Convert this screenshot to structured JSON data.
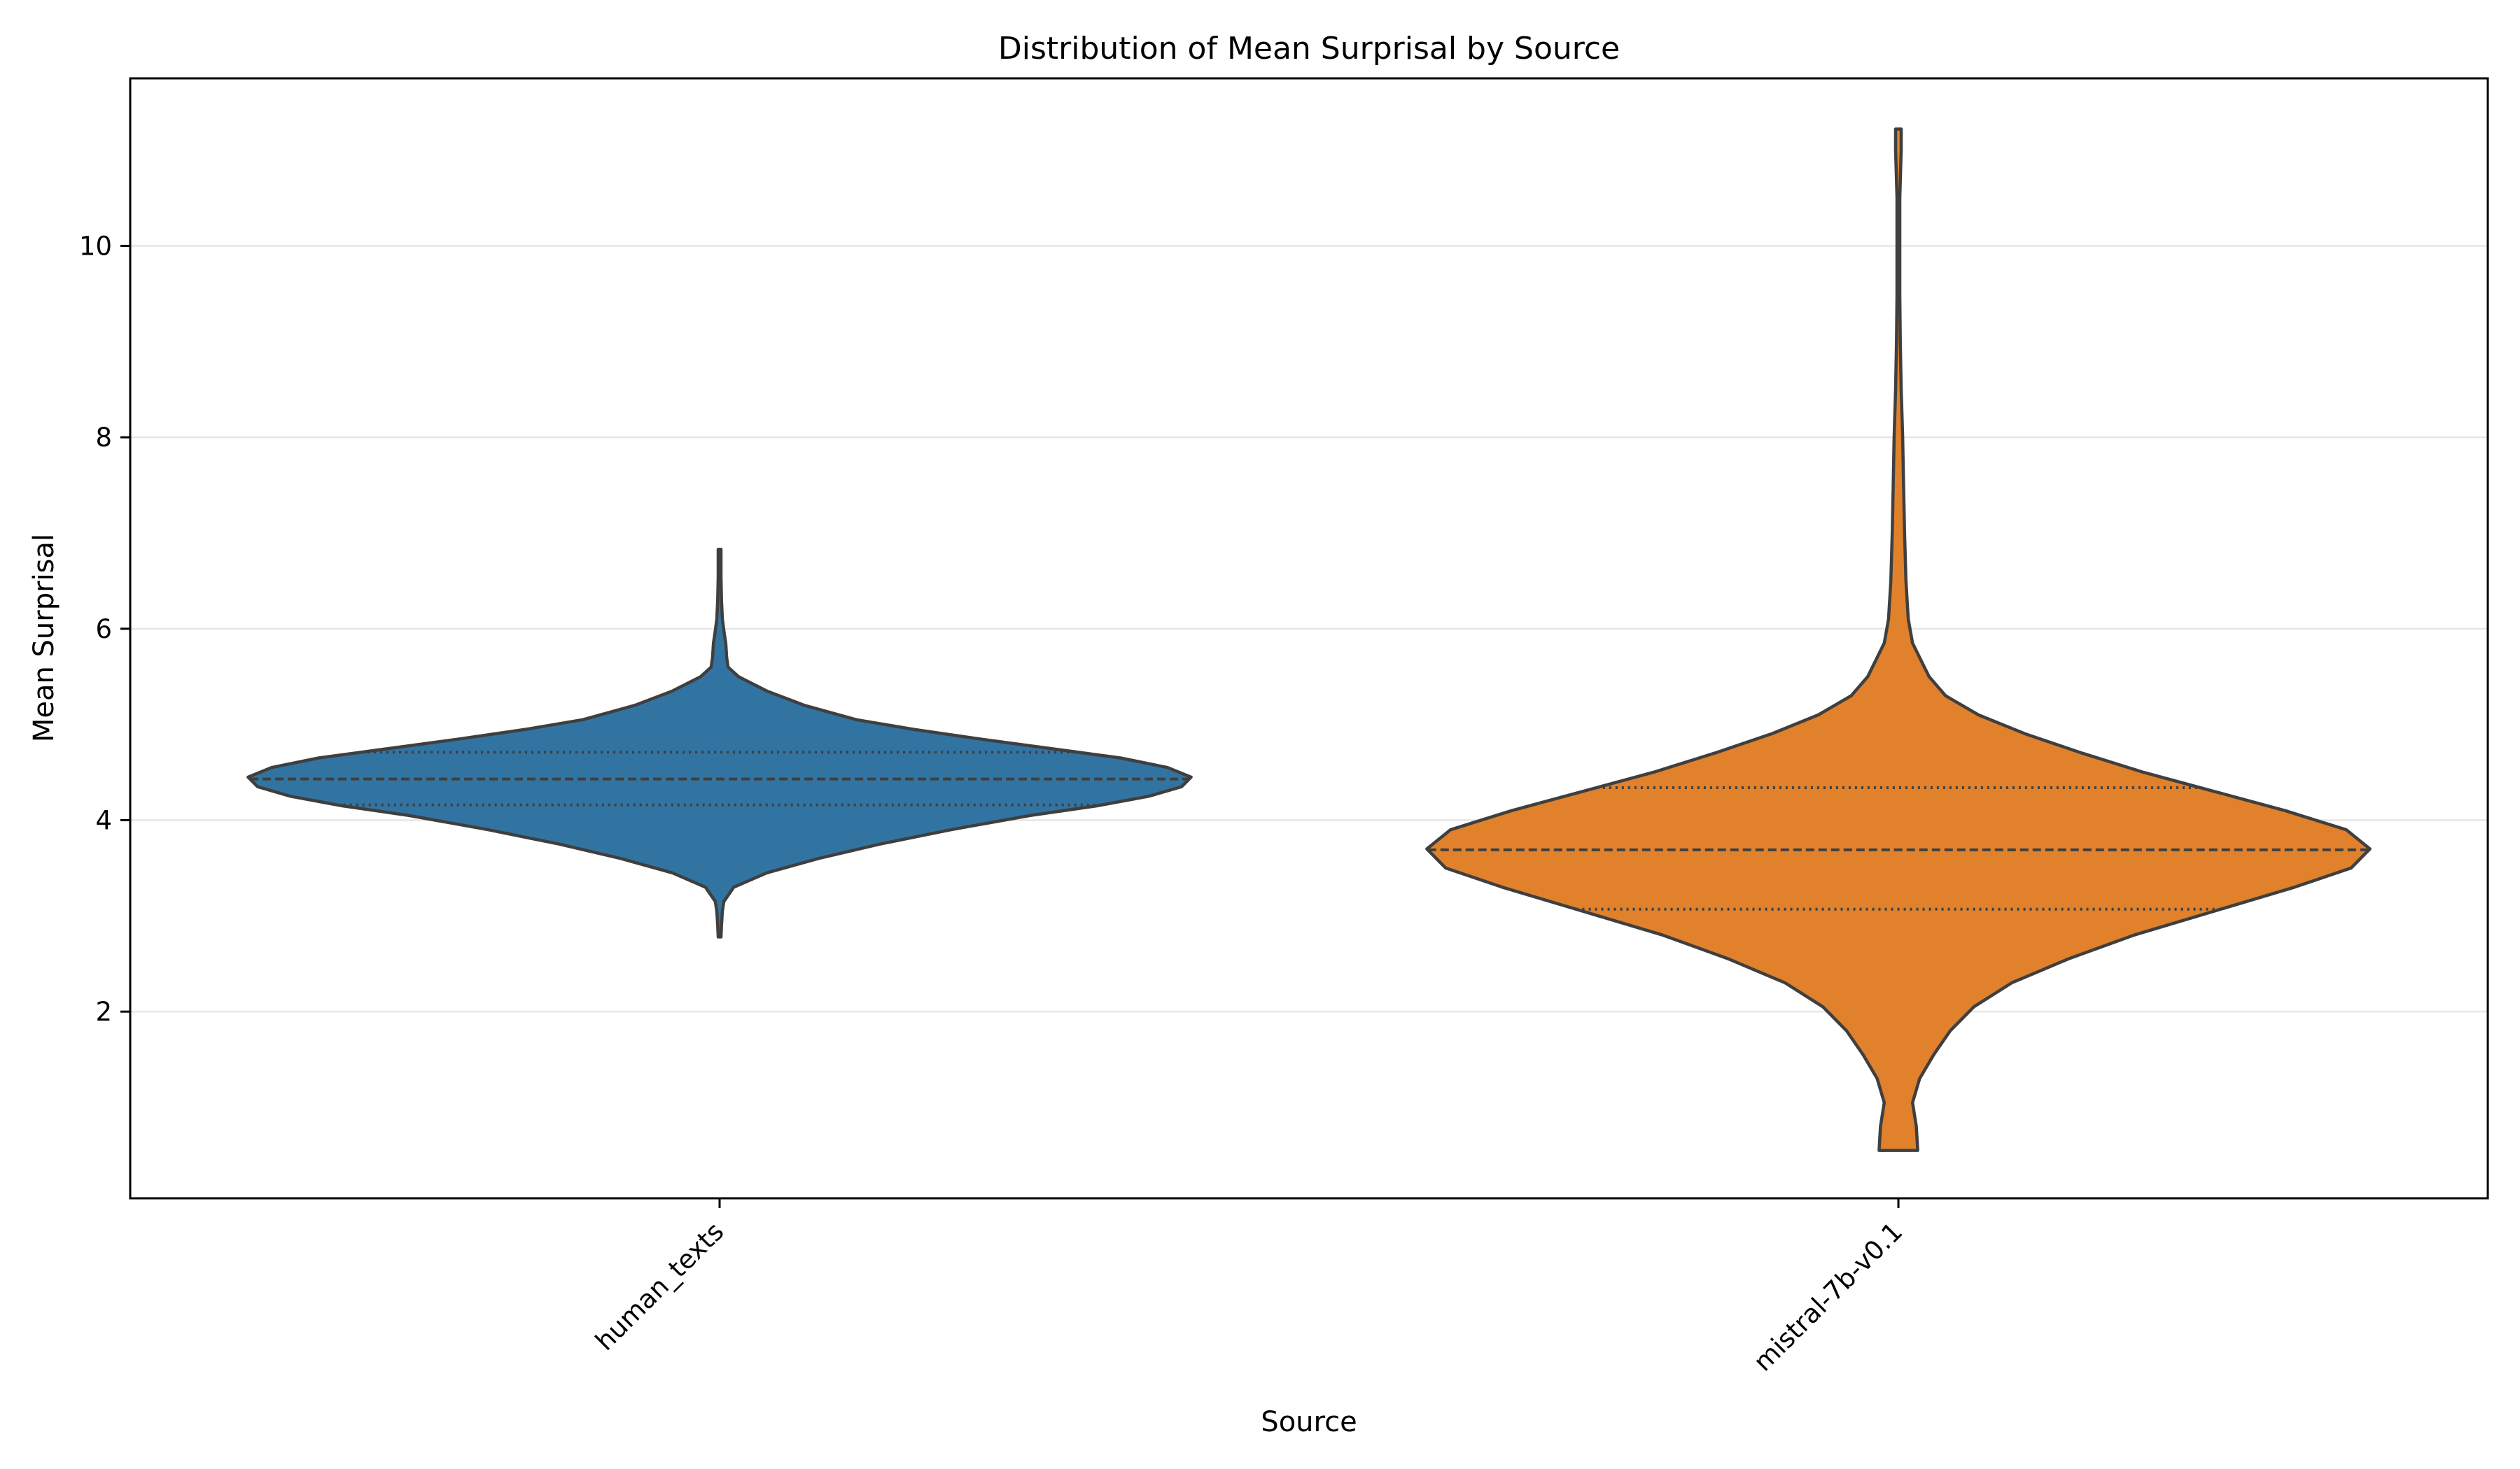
{
  "chart_data": {
    "type": "violin",
    "title": "Distribution of Mean Surprisal by Source",
    "xlabel": "Source",
    "ylabel": "Mean Surprisal",
    "categories": [
      "human_texts",
      "mistral-7b-v0.1"
    ],
    "ylim": [
      0.05,
      11.75
    ],
    "yticks": [
      2,
      4,
      6,
      8,
      10
    ],
    "grid": "horizontal",
    "inner": "quartile",
    "colors": [
      "#3274a1",
      "#e1812c"
    ],
    "series": [
      {
        "category": "human_texts",
        "min": 2.78,
        "max": 6.83,
        "q1": 4.16,
        "median": 4.43,
        "q3": 4.71,
        "density": [
          [
            2.78,
            0.003
          ],
          [
            2.9,
            0.004
          ],
          [
            3.05,
            0.006
          ],
          [
            3.15,
            0.009
          ],
          [
            3.3,
            0.03
          ],
          [
            3.45,
            0.1
          ],
          [
            3.6,
            0.21
          ],
          [
            3.75,
            0.34
          ],
          [
            3.9,
            0.49
          ],
          [
            4.05,
            0.66
          ],
          [
            4.15,
            0.8
          ],
          [
            4.25,
            0.91
          ],
          [
            4.35,
            0.98
          ],
          [
            4.45,
            1.0
          ],
          [
            4.55,
            0.95
          ],
          [
            4.65,
            0.85
          ],
          [
            4.75,
            0.7
          ],
          [
            4.85,
            0.55
          ],
          [
            4.95,
            0.41
          ],
          [
            5.05,
            0.29
          ],
          [
            5.2,
            0.18
          ],
          [
            5.35,
            0.1
          ],
          [
            5.5,
            0.04
          ],
          [
            5.6,
            0.018
          ],
          [
            5.7,
            0.015
          ],
          [
            5.85,
            0.013
          ],
          [
            5.95,
            0.01
          ],
          [
            6.1,
            0.006
          ],
          [
            6.3,
            0.004
          ],
          [
            6.55,
            0.003
          ],
          [
            6.83,
            0.003
          ]
        ]
      },
      {
        "category": "mistral-7b-v0.1",
        "min": 0.55,
        "max": 11.22,
        "q1": 3.07,
        "median": 3.69,
        "q3": 4.34,
        "density": [
          [
            0.55,
            0.041
          ],
          [
            0.8,
            0.038
          ],
          [
            1.05,
            0.03
          ],
          [
            1.3,
            0.045
          ],
          [
            1.55,
            0.075
          ],
          [
            1.8,
            0.11
          ],
          [
            2.05,
            0.16
          ],
          [
            2.3,
            0.24
          ],
          [
            2.55,
            0.36
          ],
          [
            2.8,
            0.5
          ],
          [
            3.05,
            0.67
          ],
          [
            3.3,
            0.84
          ],
          [
            3.5,
            0.96
          ],
          [
            3.7,
            1.0
          ],
          [
            3.9,
            0.95
          ],
          [
            4.1,
            0.82
          ],
          [
            4.3,
            0.67
          ],
          [
            4.5,
            0.52
          ],
          [
            4.7,
            0.39
          ],
          [
            4.9,
            0.27
          ],
          [
            5.1,
            0.17
          ],
          [
            5.3,
            0.1
          ],
          [
            5.5,
            0.065
          ],
          [
            5.7,
            0.045
          ],
          [
            5.85,
            0.03
          ],
          [
            6.1,
            0.021
          ],
          [
            6.5,
            0.016
          ],
          [
            7.0,
            0.013
          ],
          [
            7.5,
            0.011
          ],
          [
            8.0,
            0.009
          ],
          [
            8.5,
            0.006
          ],
          [
            9.0,
            0.004
          ],
          [
            9.5,
            0.003
          ],
          [
            10.0,
            0.003
          ],
          [
            10.5,
            0.003
          ],
          [
            11.0,
            0.006
          ],
          [
            11.22,
            0.006
          ]
        ]
      }
    ]
  }
}
